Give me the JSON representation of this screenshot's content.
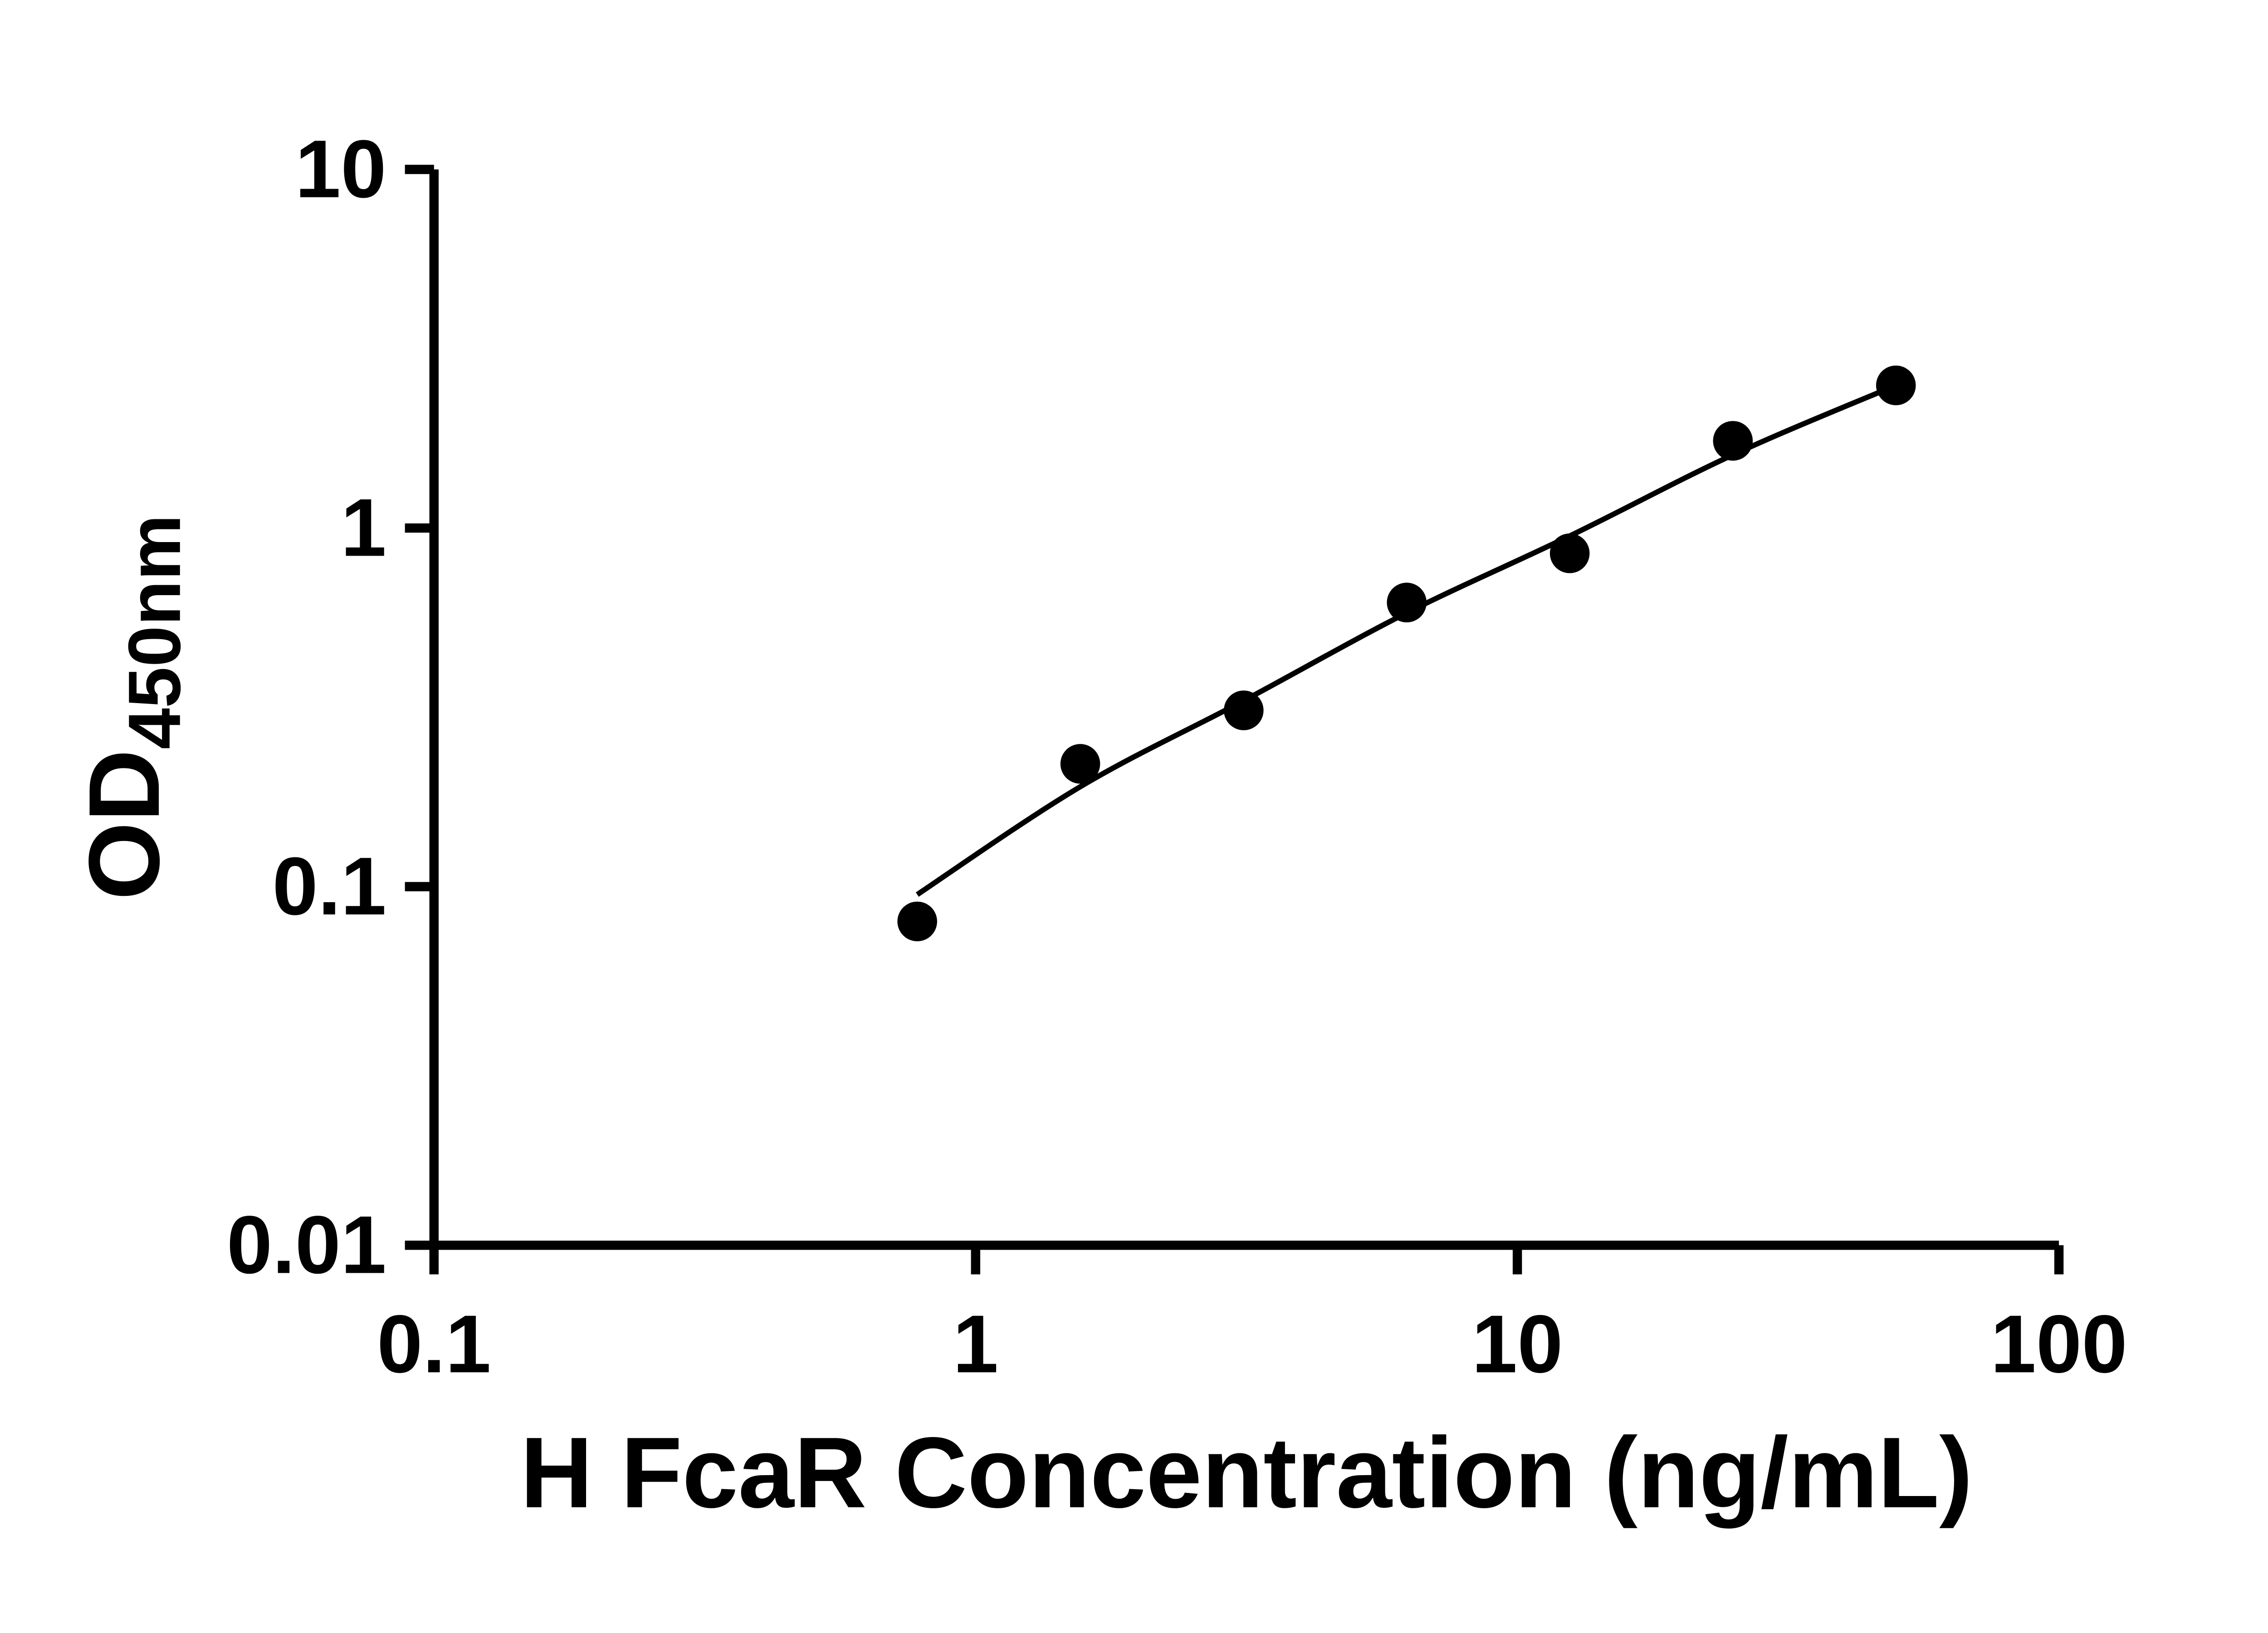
{
  "figure": {
    "background_color": "#ffffff",
    "ink_color": "#000000"
  },
  "chart_data": {
    "type": "scatter",
    "title": "",
    "xlabel": "H FcaR Concentration (ng/mL)",
    "ylabel": {
      "main": "OD",
      "subscript": "450nm"
    },
    "x_scale": "log",
    "y_scale": "log",
    "xlim": [
      0.1,
      100
    ],
    "ylim": [
      0.01,
      10
    ],
    "x_ticks": [
      0.1,
      1,
      10,
      100
    ],
    "x_tick_labels": [
      "0.1",
      "1",
      "10",
      "100"
    ],
    "y_ticks": [
      0.01,
      0.1,
      1,
      10
    ],
    "y_tick_labels": [
      "0.01",
      "0.1",
      "1",
      "10"
    ],
    "grid": false,
    "legend": null,
    "series": [
      {
        "name": "standard-points",
        "type": "scatter",
        "marker": "filled-circle",
        "color": "#000000",
        "x": [
          0.78,
          1.56,
          3.125,
          6.25,
          12.5,
          25,
          50
        ],
        "y": [
          0.08,
          0.22,
          0.31,
          0.62,
          0.85,
          1.75,
          2.5
        ]
      },
      {
        "name": "fit-curve",
        "type": "line",
        "color": "#000000",
        "x": [
          0.78,
          1.56,
          3.125,
          6.25,
          12.5,
          25,
          50
        ],
        "y": [
          0.095,
          0.19,
          0.33,
          0.58,
          0.95,
          1.6,
          2.5
        ]
      }
    ]
  }
}
